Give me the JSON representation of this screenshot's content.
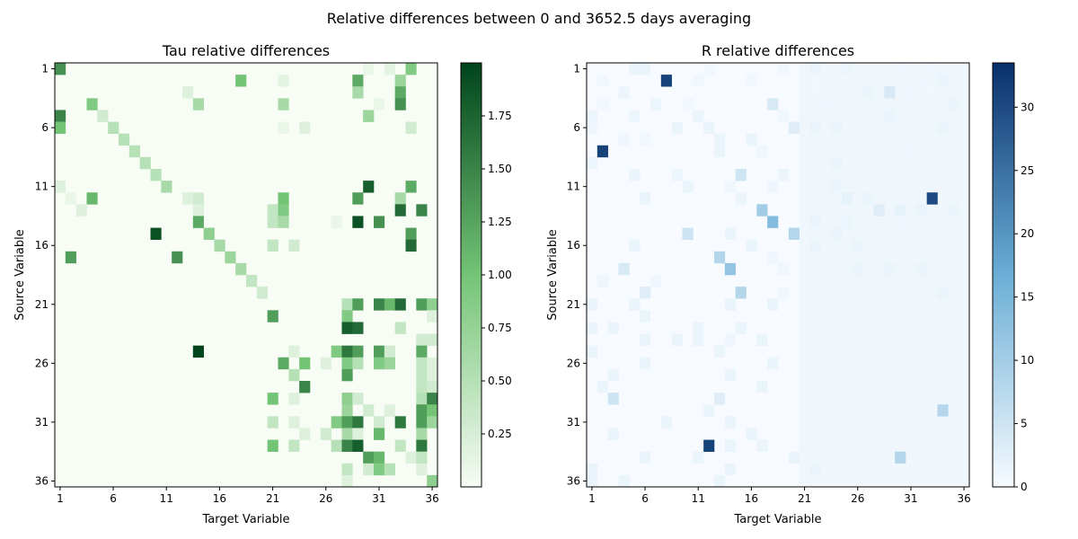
{
  "suptitle": "Relative differences between 0 and 3652.5 days averaging",
  "chart_data": [
    {
      "type": "heatmap",
      "title": "Tau relative differences",
      "xlabel": "Target Variable",
      "ylabel": "Source Variable",
      "n": 36,
      "xticks": [
        "1",
        "6",
        "11",
        "16",
        "21",
        "26",
        "31",
        "36"
      ],
      "yticks": [
        "1",
        "6",
        "11",
        "16",
        "21",
        "26",
        "31",
        "36"
      ],
      "colormap": "Greens",
      "colors": {
        "low": "#f7fcf5",
        "mid": "#74c476",
        "high": "#00441b"
      },
      "vmin": 0.0,
      "vmax": 2.0,
      "colorbar_ticks": [
        "0.25",
        "0.50",
        "0.75",
        "1.00",
        "1.25",
        "1.50",
        "1.75"
      ],
      "cells": [
        [
          1,
          1,
          1.4
        ],
        [
          1,
          30,
          0.1
        ],
        [
          1,
          32,
          0.15
        ],
        [
          1,
          34,
          0.9
        ],
        [
          2,
          18,
          1.0
        ],
        [
          2,
          22,
          0.15
        ],
        [
          2,
          29,
          1.2
        ],
        [
          2,
          33,
          0.7
        ],
        [
          3,
          13,
          0.2
        ],
        [
          3,
          29,
          0.6
        ],
        [
          3,
          33,
          1.2
        ],
        [
          4,
          4,
          0.9
        ],
        [
          4,
          14,
          0.6
        ],
        [
          4,
          22,
          0.6
        ],
        [
          4,
          31,
          0.1
        ],
        [
          4,
          33,
          1.4
        ],
        [
          5,
          1,
          1.5
        ],
        [
          5,
          5,
          0.3
        ],
        [
          5,
          30,
          0.7
        ],
        [
          6,
          1,
          1.0
        ],
        [
          6,
          6,
          0.5
        ],
        [
          6,
          22,
          0.1
        ],
        [
          6,
          24,
          0.2
        ],
        [
          6,
          34,
          0.3
        ],
        [
          7,
          7,
          0.5
        ],
        [
          8,
          8,
          0.5
        ],
        [
          9,
          9,
          0.5
        ],
        [
          10,
          10,
          0.5
        ],
        [
          11,
          1,
          0.2
        ],
        [
          11,
          11,
          0.6
        ],
        [
          11,
          30,
          1.8
        ],
        [
          11,
          34,
          1.2
        ],
        [
          12,
          2,
          0.1
        ],
        [
          12,
          4,
          1.1
        ],
        [
          12,
          13,
          0.2
        ],
        [
          12,
          14,
          0.3
        ],
        [
          12,
          22,
          1.0
        ],
        [
          12,
          29,
          1.3
        ],
        [
          12,
          33,
          0.6
        ],
        [
          13,
          3,
          0.2
        ],
        [
          13,
          14,
          0.2
        ],
        [
          13,
          21,
          0.4
        ],
        [
          13,
          22,
          0.9
        ],
        [
          13,
          33,
          1.7
        ],
        [
          13,
          35,
          1.5
        ],
        [
          14,
          14,
          1.2
        ],
        [
          14,
          21,
          0.4
        ],
        [
          14,
          22,
          0.6
        ],
        [
          14,
          27,
          0.1
        ],
        [
          14,
          29,
          1.9
        ],
        [
          14,
          31,
          1.4
        ],
        [
          15,
          10,
          1.9
        ],
        [
          15,
          15,
          0.8
        ],
        [
          15,
          34,
          1.3
        ],
        [
          16,
          16,
          0.6
        ],
        [
          16,
          21,
          0.4
        ],
        [
          16,
          23,
          0.3
        ],
        [
          16,
          34,
          1.7
        ],
        [
          17,
          2,
          1.3
        ],
        [
          17,
          12,
          1.4
        ],
        [
          17,
          17,
          0.7
        ],
        [
          18,
          18,
          0.6
        ],
        [
          19,
          19,
          0.4
        ],
        [
          20,
          20,
          0.3
        ],
        [
          21,
          28,
          0.5
        ],
        [
          21,
          29,
          1.3
        ],
        [
          21,
          31,
          1.5
        ],
        [
          21,
          32,
          1.1
        ],
        [
          21,
          33,
          1.7
        ],
        [
          21,
          35,
          1.3
        ],
        [
          21,
          36,
          0.8
        ],
        [
          22,
          21,
          1.3
        ],
        [
          22,
          28,
          0.9
        ],
        [
          22,
          36,
          0.2
        ],
        [
          23,
          28,
          1.8
        ],
        [
          23,
          29,
          1.7
        ],
        [
          23,
          33,
          0.4
        ],
        [
          24,
          35,
          0.3
        ],
        [
          24,
          36,
          0.3
        ],
        [
          25,
          14,
          2.0
        ],
        [
          25,
          23,
          0.2
        ],
        [
          25,
          27,
          0.9
        ],
        [
          25,
          28,
          1.6
        ],
        [
          25,
          29,
          1.3
        ],
        [
          25,
          31,
          1.3
        ],
        [
          25,
          32,
          0.3
        ],
        [
          25,
          35,
          1.2
        ],
        [
          26,
          22,
          1.2
        ],
        [
          26,
          24,
          1.0
        ],
        [
          26,
          26,
          0.2
        ],
        [
          26,
          28,
          0.9
        ],
        [
          26,
          29,
          0.5
        ],
        [
          26,
          31,
          0.9
        ],
        [
          26,
          32,
          0.7
        ],
        [
          26,
          35,
          0.4
        ],
        [
          26,
          36,
          0.2
        ],
        [
          27,
          23,
          0.5
        ],
        [
          27,
          28,
          1.3
        ],
        [
          27,
          35,
          0.4
        ],
        [
          27,
          36,
          0.2
        ],
        [
          28,
          24,
          1.5
        ],
        [
          28,
          35,
          0.4
        ],
        [
          28,
          36,
          0.3
        ],
        [
          29,
          21,
          1.0
        ],
        [
          29,
          23,
          0.2
        ],
        [
          29,
          28,
          0.8
        ],
        [
          29,
          29,
          0.3
        ],
        [
          29,
          35,
          0.5
        ],
        [
          29,
          36,
          1.5
        ],
        [
          30,
          28,
          0.7
        ],
        [
          30,
          30,
          0.3
        ],
        [
          30,
          32,
          0.2
        ],
        [
          30,
          35,
          1.3
        ],
        [
          30,
          36,
          1.0
        ],
        [
          31,
          21,
          0.4
        ],
        [
          31,
          23,
          0.2
        ],
        [
          31,
          27,
          0.9
        ],
        [
          31,
          28,
          1.3
        ],
        [
          31,
          29,
          1.6
        ],
        [
          31,
          31,
          0.3
        ],
        [
          31,
          33,
          1.6
        ],
        [
          31,
          35,
          1.3
        ],
        [
          31,
          36,
          0.7
        ],
        [
          32,
          24,
          0.2
        ],
        [
          32,
          26,
          0.3
        ],
        [
          32,
          28,
          0.6
        ],
        [
          32,
          29,
          0.2
        ],
        [
          32,
          31,
          1.1
        ],
        [
          32,
          35,
          0.6
        ],
        [
          33,
          21,
          1.0
        ],
        [
          33,
          23,
          0.4
        ],
        [
          33,
          27,
          0.5
        ],
        [
          33,
          28,
          1.5
        ],
        [
          33,
          29,
          1.8
        ],
        [
          33,
          33,
          0.4
        ],
        [
          33,
          35,
          1.6
        ],
        [
          34,
          30,
          1.3
        ],
        [
          34,
          31,
          1.1
        ],
        [
          34,
          34,
          0.2
        ],
        [
          34,
          35,
          0.4
        ],
        [
          35,
          28,
          0.4
        ],
        [
          35,
          30,
          0.3
        ],
        [
          35,
          31,
          0.9
        ],
        [
          35,
          32,
          0.5
        ],
        [
          35,
          35,
          0.2
        ],
        [
          36,
          28,
          0.2
        ],
        [
          36,
          36,
          0.8
        ]
      ]
    },
    {
      "type": "heatmap",
      "title": "R relative differences",
      "xlabel": "Target Variable",
      "ylabel": "Source Variable",
      "n": 36,
      "xticks": [
        "1",
        "6",
        "11",
        "16",
        "21",
        "26",
        "31",
        "36"
      ],
      "yticks": [
        "1",
        "6",
        "11",
        "16",
        "21",
        "26",
        "31",
        "36"
      ],
      "colormap": "Blues",
      "colors": {
        "low": "#f7fbff",
        "mid": "#6baed6",
        "high": "#08306b"
      },
      "vmin": 0,
      "vmax": 33.5,
      "colorbar_ticks": [
        "0",
        "5",
        "10",
        "15",
        "20",
        "25",
        "30"
      ],
      "background_cells": [
        [
          1,
          21,
          36,
          36,
          0.9
        ]
      ],
      "cells": [
        [
          1,
          5,
          1.5
        ],
        [
          1,
          6,
          1.5
        ],
        [
          1,
          12,
          0.8
        ],
        [
          1,
          19,
          0.8
        ],
        [
          1,
          22,
          1.5
        ],
        [
          1,
          25,
          1.2
        ],
        [
          1,
          30,
          1.0
        ],
        [
          1,
          33,
          1.0
        ],
        [
          2,
          8,
          31
        ],
        [
          2,
          2,
          0.8
        ],
        [
          2,
          11,
          0.8
        ],
        [
          2,
          16,
          0.8
        ],
        [
          2,
          22,
          0.8
        ],
        [
          2,
          32,
          1.0
        ],
        [
          2,
          34,
          1.5
        ],
        [
          3,
          4,
          1.2
        ],
        [
          3,
          22,
          0.8
        ],
        [
          3,
          27,
          1.5
        ],
        [
          3,
          29,
          4.0
        ],
        [
          3,
          31,
          1.0
        ],
        [
          3,
          33,
          0.8
        ],
        [
          4,
          2,
          0.8
        ],
        [
          4,
          7,
          1.2
        ],
        [
          4,
          10,
          0.8
        ],
        [
          4,
          18,
          4.0
        ],
        [
          4,
          23,
          1.0
        ],
        [
          4,
          35,
          1.5
        ],
        [
          5,
          1,
          1.2
        ],
        [
          5,
          5,
          1.2
        ],
        [
          5,
          11,
          1.5
        ],
        [
          5,
          19,
          0.8
        ],
        [
          5,
          29,
          1.5
        ],
        [
          6,
          1,
          1.0
        ],
        [
          6,
          9,
          1.5
        ],
        [
          6,
          12,
          1.5
        ],
        [
          6,
          20,
          3.0
        ],
        [
          6,
          22,
          1.5
        ],
        [
          6,
          24,
          1.5
        ],
        [
          6,
          34,
          1.5
        ],
        [
          7,
          4,
          1.0
        ],
        [
          7,
          6,
          0.8
        ],
        [
          7,
          13,
          1.5
        ],
        [
          7,
          16,
          1.5
        ],
        [
          8,
          2,
          31
        ],
        [
          8,
          13,
          1.5
        ],
        [
          8,
          17,
          1.0
        ],
        [
          8,
          31,
          1.0
        ],
        [
          9,
          1,
          1.2
        ],
        [
          9,
          24,
          1.5
        ],
        [
          10,
          5,
          1.5
        ],
        [
          10,
          9,
          1.2
        ],
        [
          10,
          15,
          5.0
        ],
        [
          10,
          19,
          1.2
        ],
        [
          11,
          10,
          1.5
        ],
        [
          11,
          14,
          0.8
        ],
        [
          11,
          18,
          1.0
        ],
        [
          11,
          24,
          1.5
        ],
        [
          12,
          6,
          1.5
        ],
        [
          12,
          15,
          1.2
        ],
        [
          12,
          25,
          2.0
        ],
        [
          12,
          27,
          1.5
        ],
        [
          12,
          33,
          30
        ],
        [
          13,
          17,
          10.0
        ],
        [
          13,
          28,
          3.0
        ],
        [
          13,
          30,
          2.0
        ],
        [
          13,
          32,
          1.5
        ],
        [
          13,
          35,
          1.5
        ],
        [
          14,
          18,
          14.0
        ],
        [
          14,
          22,
          1.5
        ],
        [
          14,
          25,
          1.5
        ],
        [
          14,
          30,
          1.0
        ],
        [
          15,
          10,
          5.0
        ],
        [
          15,
          14,
          1.5
        ],
        [
          15,
          20,
          8.0
        ],
        [
          15,
          24,
          1.5
        ],
        [
          16,
          5,
          1.5
        ],
        [
          16,
          16,
          1.5
        ],
        [
          16,
          22,
          1.5
        ],
        [
          16,
          26,
          1.5
        ],
        [
          17,
          13,
          8.0
        ],
        [
          17,
          18,
          1.0
        ],
        [
          18,
          4,
          4.0
        ],
        [
          18,
          14,
          12.0
        ],
        [
          18,
          19,
          1.0
        ],
        [
          18,
          26,
          1.5
        ],
        [
          18,
          29,
          1.5
        ],
        [
          18,
          32,
          1.5
        ],
        [
          19,
          2,
          1.0
        ],
        [
          19,
          7,
          1.0
        ],
        [
          20,
          6,
          3.0
        ],
        [
          20,
          15,
          8.0
        ],
        [
          20,
          19,
          0.8
        ],
        [
          20,
          34,
          1.5
        ],
        [
          21,
          1,
          1.5
        ],
        [
          21,
          5,
          1.5
        ],
        [
          21,
          14,
          1.5
        ],
        [
          21,
          18,
          1.5
        ],
        [
          22,
          6,
          1.5
        ],
        [
          23,
          1,
          1.5
        ],
        [
          23,
          3,
          1.5
        ],
        [
          23,
          11,
          1.5
        ],
        [
          23,
          15,
          1.5
        ],
        [
          24,
          6,
          1.5
        ],
        [
          24,
          9,
          1.5
        ],
        [
          24,
          11,
          1.5
        ],
        [
          24,
          14,
          1.0
        ],
        [
          24,
          17,
          1.5
        ],
        [
          25,
          1,
          1.5
        ],
        [
          25,
          13,
          1.5
        ],
        [
          26,
          6,
          1.5
        ],
        [
          26,
          18,
          1.5
        ],
        [
          27,
          3,
          1.5
        ],
        [
          27,
          14,
          1.5
        ],
        [
          28,
          2,
          1.5
        ],
        [
          28,
          17,
          1.5
        ],
        [
          29,
          3,
          5.0
        ],
        [
          29,
          13,
          3.0
        ],
        [
          30,
          12,
          1.5
        ],
        [
          30,
          34,
          8.0
        ],
        [
          31,
          8,
          1.5
        ],
        [
          31,
          14,
          1.5
        ],
        [
          32,
          3,
          1.5
        ],
        [
          32,
          16,
          1.5
        ],
        [
          33,
          12,
          31
        ],
        [
          33,
          14,
          1.5
        ],
        [
          33,
          17,
          1.5
        ],
        [
          34,
          6,
          1.5
        ],
        [
          34,
          11,
          1.5
        ],
        [
          34,
          20,
          1.5
        ],
        [
          34,
          30,
          8.0
        ],
        [
          35,
          1,
          1.5
        ],
        [
          35,
          14,
          1.5
        ],
        [
          35,
          22,
          1.5
        ],
        [
          36,
          1,
          1.5
        ],
        [
          36,
          4,
          1.5
        ],
        [
          36,
          13,
          1.5
        ]
      ]
    }
  ]
}
